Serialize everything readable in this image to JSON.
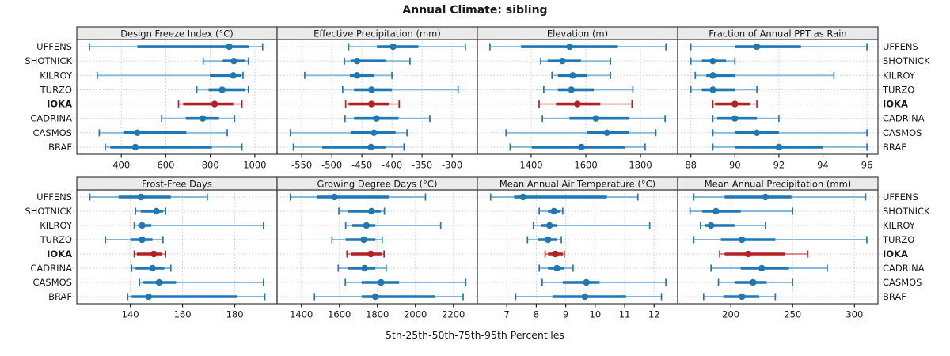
{
  "title": "Annual Climate: sibling",
  "footer": "5th-25th-50th-75th-95th Percentiles",
  "stations": [
    "UFFENS",
    "SHOTNICK",
    "KILROY",
    "TURZO",
    "IOKA",
    "CADRINA",
    "CASMOS",
    "BRAF"
  ],
  "highlight_station": "IOKA",
  "colors": {
    "normal": "#1f77b4",
    "normal_light": "#85b8da",
    "highlight": "#b22222",
    "highlight_light": "#d78f87",
    "grid": "#c9c9c9",
    "panel_border": "#3b3b3b",
    "header_fill": "#eaeaea"
  },
  "percentiles": [
    5,
    25,
    50,
    75,
    95
  ],
  "chart_data": [
    {
      "type": "dot-whisker",
      "title": "Design Freeze Index (°C)",
      "xlim": [
        200,
        1100
      ],
      "ticks": [
        400,
        600,
        800,
        1000
      ],
      "values": [
        [
          257,
          472,
          885,
          973,
          1035
        ],
        [
          768,
          856,
          906,
          958,
          971
        ],
        [
          292,
          798,
          903,
          938,
          947
        ],
        [
          739,
          792,
          853,
          955,
          971
        ],
        [
          657,
          678,
          819,
          903,
          942
        ],
        [
          581,
          690,
          766,
          839,
          909
        ],
        [
          301,
          409,
          472,
          692,
          876
        ],
        [
          328,
          351,
          463,
          807,
          942
        ]
      ]
    },
    {
      "type": "dot-whisker",
      "title": "Effective Precipitation (mm)",
      "xlim": [
        -591,
        -258
      ],
      "ticks": [
        -550,
        -500,
        -450,
        -400,
        -350,
        -300
      ],
      "values": [
        [
          -472,
          -425,
          -398,
          -356,
          -278
        ],
        [
          -479,
          -468,
          -458,
          -411,
          -370
        ],
        [
          -545,
          -470,
          -458,
          -429,
          -400
        ],
        [
          -482,
          -463,
          -434,
          -400,
          -290
        ],
        [
          -477,
          -472,
          -434,
          -405,
          -388
        ],
        [
          -478,
          -463,
          -426,
          -389,
          -337
        ],
        [
          -569,
          -468,
          -430,
          -394,
          -375
        ],
        [
          -564,
          -516,
          -435,
          -411,
          -380
        ]
      ]
    },
    {
      "type": "dot-whisker",
      "title": "Elevation (m)",
      "xlim": [
        1203,
        1936
      ],
      "ticks": [
        1400,
        1600,
        1800
      ],
      "values": [
        [
          1249,
          1363,
          1541,
          1717,
          1893
        ],
        [
          1435,
          1460,
          1514,
          1582,
          1690
        ],
        [
          1476,
          1498,
          1552,
          1605,
          1690
        ],
        [
          1446,
          1498,
          1547,
          1629,
          1772
        ],
        [
          1429,
          1491,
          1569,
          1653,
          1769
        ],
        [
          1441,
          1540,
          1637,
          1759,
          1890
        ],
        [
          1308,
          1605,
          1677,
          1759,
          1856
        ],
        [
          1323,
          1402,
          1584,
          1745,
          1817
        ]
      ]
    },
    {
      "type": "dot-whisker",
      "title": "Fraction of Annual PPT as Rain",
      "xlim": [
        87.4,
        96.5
      ],
      "ticks": [
        88,
        90,
        92,
        94,
        96
      ],
      "values": [
        [
          88,
          90,
          91,
          93,
          96
        ],
        [
          88,
          88.5,
          89,
          89.6,
          90
        ],
        [
          88.2,
          88.7,
          89,
          90,
          94.5
        ],
        [
          88,
          88.5,
          89,
          90,
          91
        ],
        [
          89,
          89.1,
          90,
          90.7,
          91
        ],
        [
          89,
          89.2,
          90,
          91,
          92
        ],
        [
          89,
          90,
          91,
          92,
          96
        ],
        [
          89,
          90,
          92,
          94,
          96
        ]
      ]
    },
    {
      "type": "dot-whisker",
      "title": "Frost-Free Days",
      "xlim": [
        119.5,
        196.2
      ],
      "ticks": [
        140,
        160,
        180
      ],
      "values": [
        [
          124.5,
          135.5,
          144,
          155.5,
          169.5
        ],
        [
          142,
          144,
          150,
          152.5,
          153.5
        ],
        [
          141.5,
          143,
          144.5,
          148,
          191
        ],
        [
          130.5,
          140,
          144.5,
          148.5,
          152.5
        ],
        [
          141.5,
          142.5,
          149,
          152,
          153.5
        ],
        [
          140.5,
          142,
          148.5,
          153,
          155.5
        ],
        [
          143.5,
          145,
          151,
          157.5,
          191
        ],
        [
          139,
          140.5,
          147,
          181,
          191.5
        ]
      ]
    },
    {
      "type": "dot-whisker",
      "title": "Growing Degree Days (°C)",
      "xlim": [
        1272,
        2326
      ],
      "ticks": [
        1400,
        1600,
        1800,
        2000,
        2200
      ],
      "values": [
        [
          1342,
          1480,
          1574,
          1862,
          2053
        ],
        [
          1597,
          1647,
          1769,
          1817,
          1837
        ],
        [
          1633,
          1668,
          1742,
          1789,
          2133
        ],
        [
          1561,
          1633,
          1728,
          1789,
          1825
        ],
        [
          1640,
          1661,
          1765,
          1821,
          1835
        ],
        [
          1594,
          1647,
          1733,
          1789,
          1846
        ],
        [
          1631,
          1717,
          1819,
          1914,
          2265
        ],
        [
          1469,
          1717,
          1789,
          2103,
          2251
        ]
      ]
    },
    {
      "type": "dot-whisker",
      "title": "Mean Annual Air Temperature (°C)",
      "xlim": [
        6.0,
        12.8
      ],
      "ticks": [
        7,
        8,
        9,
        10,
        11,
        12
      ],
      "values": [
        [
          6.45,
          7.25,
          7.55,
          10.4,
          11.45
        ],
        [
          8.1,
          8.4,
          8.6,
          8.8,
          8.9
        ],
        [
          7.9,
          8.15,
          8.45,
          8.7,
          11.85
        ],
        [
          7.7,
          8.05,
          8.4,
          8.7,
          8.85
        ],
        [
          8.3,
          8.4,
          8.65,
          8.9,
          8.95
        ],
        [
          8.1,
          8.4,
          8.7,
          8.95,
          9.25
        ],
        [
          8.2,
          8.9,
          9.7,
          10.15,
          12.4
        ],
        [
          7.3,
          8.55,
          9.65,
          11.05,
          12.25
        ]
      ]
    },
    {
      "type": "dot-whisker",
      "title": "Mean Annual Precipitation (mm)",
      "xlim": [
        157,
        319
      ],
      "ticks": [
        200,
        250,
        300
      ],
      "values": [
        [
          170,
          195,
          228,
          249,
          309
        ],
        [
          167,
          177,
          188,
          208,
          250
        ],
        [
          175.5,
          179,
          184,
          203,
          228
        ],
        [
          170,
          192,
          209,
          236,
          310
        ],
        [
          191,
          195,
          214,
          244,
          262
        ],
        [
          184,
          208,
          225,
          247,
          278
        ],
        [
          190,
          203,
          218,
          229,
          250
        ],
        [
          178,
          194,
          209,
          223,
          236
        ]
      ]
    }
  ]
}
